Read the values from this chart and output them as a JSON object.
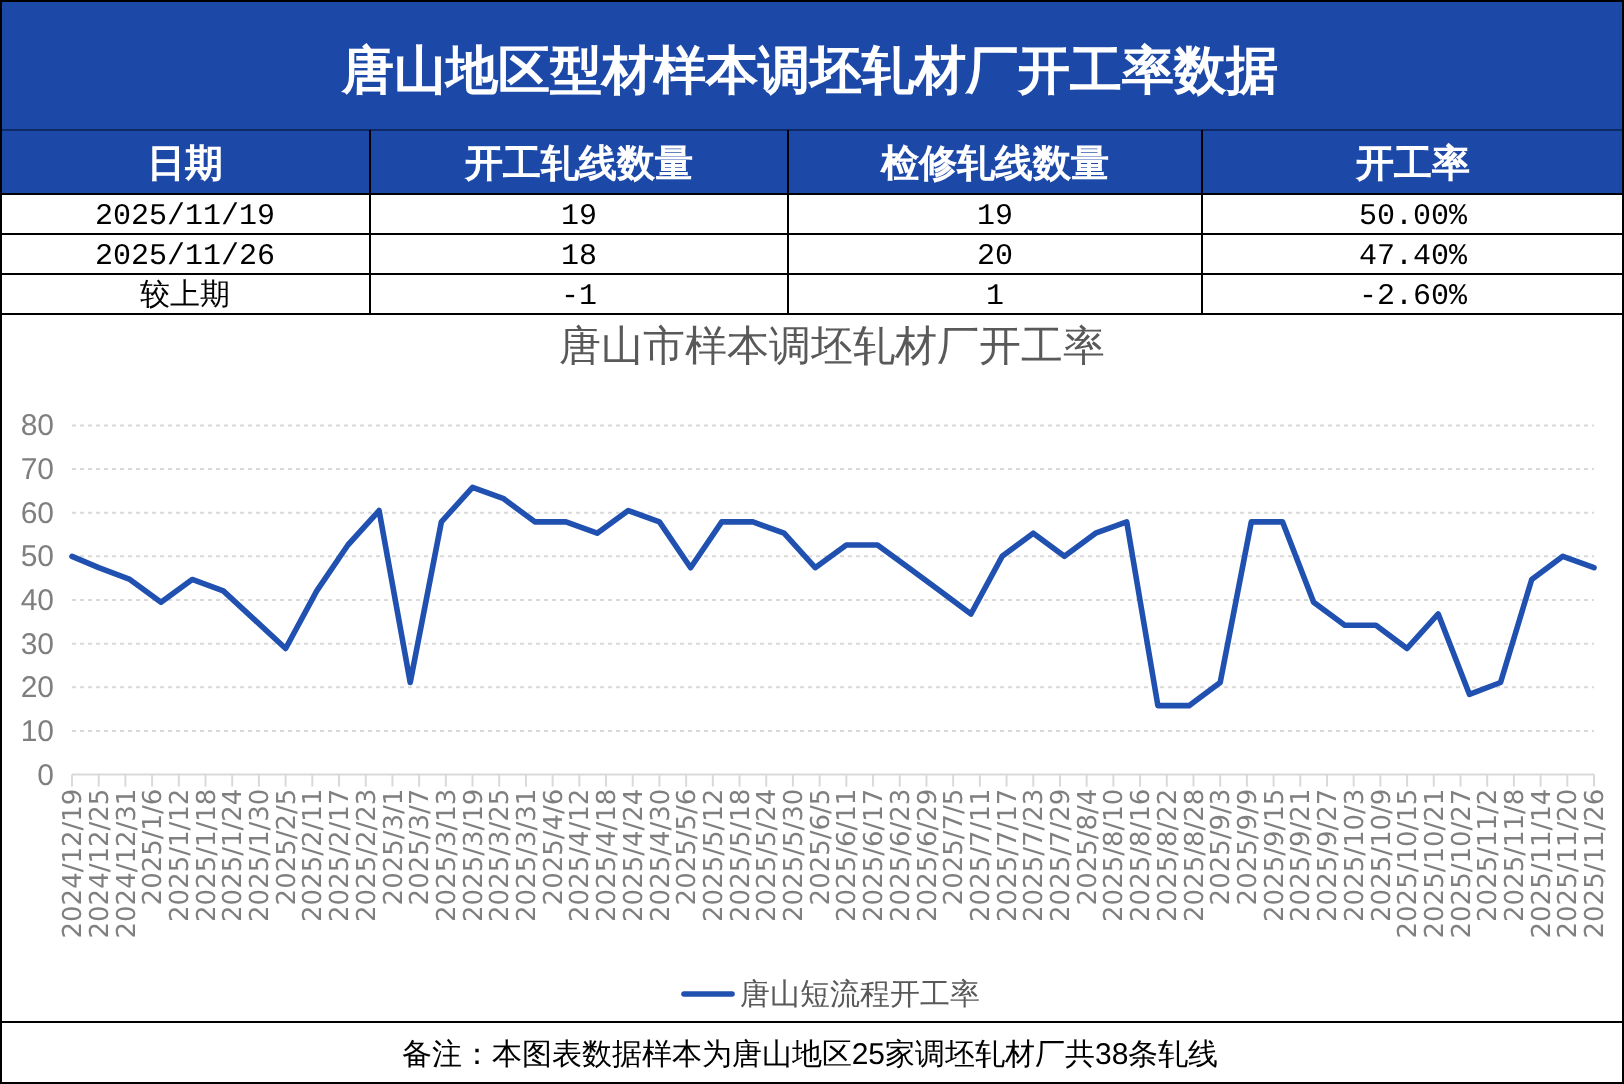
{
  "chart_data": [
    {
      "type": "other",
      "title": "唐山地区型材样本调坯轧材厂开工率数据",
      "annotations": [
        "日期",
        "开工轧线数量",
        "检修轧线数量",
        "开工率",
        "2025/11/19",
        "19",
        "19",
        "50.00%",
        "2025/11/26",
        "18",
        "20",
        "47.40%",
        "较上期",
        "-1",
        "1",
        "-2.60%"
      ]
    },
    {
      "type": "line",
      "title": "唐山市样本调坯轧材厂开工率",
      "x": [
        "2024-12-19",
        "2024-12-25",
        "2025-01-01",
        "2025-01-08",
        "2025-01-15",
        "2025-01-22",
        "2025-01-29",
        "2025-02-05",
        "2025-02-12",
        "2025-02-19",
        "2025-02-26",
        "2025-03-05",
        "2025-03-12",
        "2025-03-19",
        "2025-03-26",
        "2025-04-02",
        "2025-04-09",
        "2025-04-16",
        "2025-04-23",
        "2025-04-30",
        "2025-05-07",
        "2025-05-14",
        "2025-05-21",
        "2025-05-28",
        "2025-06-04",
        "2025-06-11",
        "2025-06-18",
        "2025-06-25",
        "2025-07-02",
        "2025-07-09",
        "2025-07-16",
        "2025-07-23",
        "2025-07-30",
        "2025-08-06",
        "2025-08-13",
        "2025-08-20",
        "2025-08-27",
        "2025-09-03",
        "2025-09-10",
        "2025-09-17",
        "2025-09-24",
        "2025-10-01",
        "2025-10-08",
        "2025-10-15",
        "2025-10-22",
        "2025-10-29",
        "2025-11-05",
        "2025-11-12",
        "2025-11-19",
        "2025-11-26"
      ],
      "series": [
        {
          "name": "唐山短流程开工率",
          "color": "#2050b0",
          "values": [
            50,
            47.4,
            44.7,
            39.5,
            44.7,
            42.1,
            35.5,
            28.9,
            42.1,
            52.6,
            60.5,
            21.1,
            57.9,
            65.8,
            63.2,
            57.9,
            57.9,
            55.3,
            60.5,
            57.9,
            47.4,
            57.9,
            57.9,
            55.3,
            47.4,
            52.6,
            52.6,
            47.4,
            42.1,
            36.8,
            50,
            55.3,
            50,
            55.3,
            57.9,
            15.8,
            15.8,
            21.1,
            57.9,
            57.9,
            39.5,
            34.2,
            34.2,
            28.9,
            36.8,
            18.4,
            21.1,
            44.7,
            50,
            47.4
          ]
        }
      ],
      "xlim": [
        "2024-12-19",
        "2025-11-26"
      ],
      "xticks": [
        {
          "value": "2024-12-19",
          "label": "2024/12/19"
        },
        {
          "value": "2024-12-25",
          "label": "2024/12/25"
        },
        {
          "value": "2024-12-31",
          "label": "2024/12/31"
        },
        {
          "value": "2025-01-06",
          "label": "2025/1/6"
        },
        {
          "value": "2025-01-12",
          "label": "2025/1/12"
        },
        {
          "value": "2025-01-18",
          "label": "2025/1/18"
        },
        {
          "value": "2025-01-24",
          "label": "2025/1/24"
        },
        {
          "value": "2025-01-30",
          "label": "2025/1/30"
        },
        {
          "value": "2025-02-05",
          "label": "2025/2/5"
        },
        {
          "value": "2025-02-11",
          "label": "2025/2/11"
        },
        {
          "value": "2025-02-17",
          "label": "2025/2/17"
        },
        {
          "value": "2025-02-23",
          "label": "2025/2/23"
        },
        {
          "value": "2025-03-01",
          "label": "2025/3/1"
        },
        {
          "value": "2025-03-07",
          "label": "2025/3/7"
        },
        {
          "value": "2025-03-13",
          "label": "2025/3/13"
        },
        {
          "value": "2025-03-19",
          "label": "2025/3/19"
        },
        {
          "value": "2025-03-25",
          "label": "2025/3/25"
        },
        {
          "value": "2025-03-31",
          "label": "2025/3/31"
        },
        {
          "value": "2025-04-06",
          "label": "2025/4/6"
        },
        {
          "value": "2025-04-12",
          "label": "2025/4/12"
        },
        {
          "value": "2025-04-18",
          "label": "2025/4/18"
        },
        {
          "value": "2025-04-24",
          "label": "2025/4/24"
        },
        {
          "value": "2025-04-30",
          "label": "2025/4/30"
        },
        {
          "value": "2025-05-06",
          "label": "2025/5/6"
        },
        {
          "value": "2025-05-12",
          "label": "2025/5/12"
        },
        {
          "value": "2025-05-18",
          "label": "2025/5/18"
        },
        {
          "value": "2025-05-24",
          "label": "2025/5/24"
        },
        {
          "value": "2025-05-30",
          "label": "2025/5/30"
        },
        {
          "value": "2025-06-05",
          "label": "2025/6/5"
        },
        {
          "value": "2025-06-11",
          "label": "2025/6/11"
        },
        {
          "value": "2025-06-17",
          "label": "2025/6/17"
        },
        {
          "value": "2025-06-23",
          "label": "2025/6/23"
        },
        {
          "value": "2025-06-29",
          "label": "2025/6/29"
        },
        {
          "value": "2025-07-05",
          "label": "2025/7/5"
        },
        {
          "value": "2025-07-11",
          "label": "2025/7/11"
        },
        {
          "value": "2025-07-17",
          "label": "2025/7/17"
        },
        {
          "value": "2025-07-23",
          "label": "2025/7/23"
        },
        {
          "value": "2025-07-29",
          "label": "2025/7/29"
        },
        {
          "value": "2025-08-04",
          "label": "2025/8/4"
        },
        {
          "value": "2025-08-10",
          "label": "2025/8/10"
        },
        {
          "value": "2025-08-16",
          "label": "2025/8/16"
        },
        {
          "value": "2025-08-22",
          "label": "2025/8/22"
        },
        {
          "value": "2025-08-28",
          "label": "2025/8/28"
        },
        {
          "value": "2025-09-03",
          "label": "2025/9/3"
        },
        {
          "value": "2025-09-09",
          "label": "2025/9/9"
        },
        {
          "value": "2025-09-15",
          "label": "2025/9/15"
        },
        {
          "value": "2025-09-21",
          "label": "2025/9/21"
        },
        {
          "value": "2025-09-27",
          "label": "2025/9/27"
        },
        {
          "value": "2025-10-03",
          "label": "2025/10/3"
        },
        {
          "value": "2025-10-09",
          "label": "2025/10/9"
        },
        {
          "value": "2025-10-15",
          "label": "2025/10/15"
        },
        {
          "value": "2025-10-21",
          "label": "2025/10/21"
        },
        {
          "value": "2025-10-27",
          "label": "2025/10/27"
        },
        {
          "value": "2025-11-02",
          "label": "2025/11/2"
        },
        {
          "value": "2025-11-08",
          "label": "2025/11/8"
        },
        {
          "value": "2025-11-14",
          "label": "2025/11/14"
        },
        {
          "value": "2025-11-20",
          "label": "2025/11/20"
        },
        {
          "value": "2025-11-26",
          "label": "2025/11/26"
        }
      ],
      "ylim": [
        0,
        80
      ],
      "yticks": [
        0,
        10,
        20,
        30,
        40,
        50,
        60,
        70,
        80
      ],
      "grid": "y",
      "legend": "bottom",
      "line_style": "solid",
      "annotations": [
        "备注：本图表数据样本为唐山地区25家调坯轧材厂共38条轧线"
      ]
    }
  ]
}
